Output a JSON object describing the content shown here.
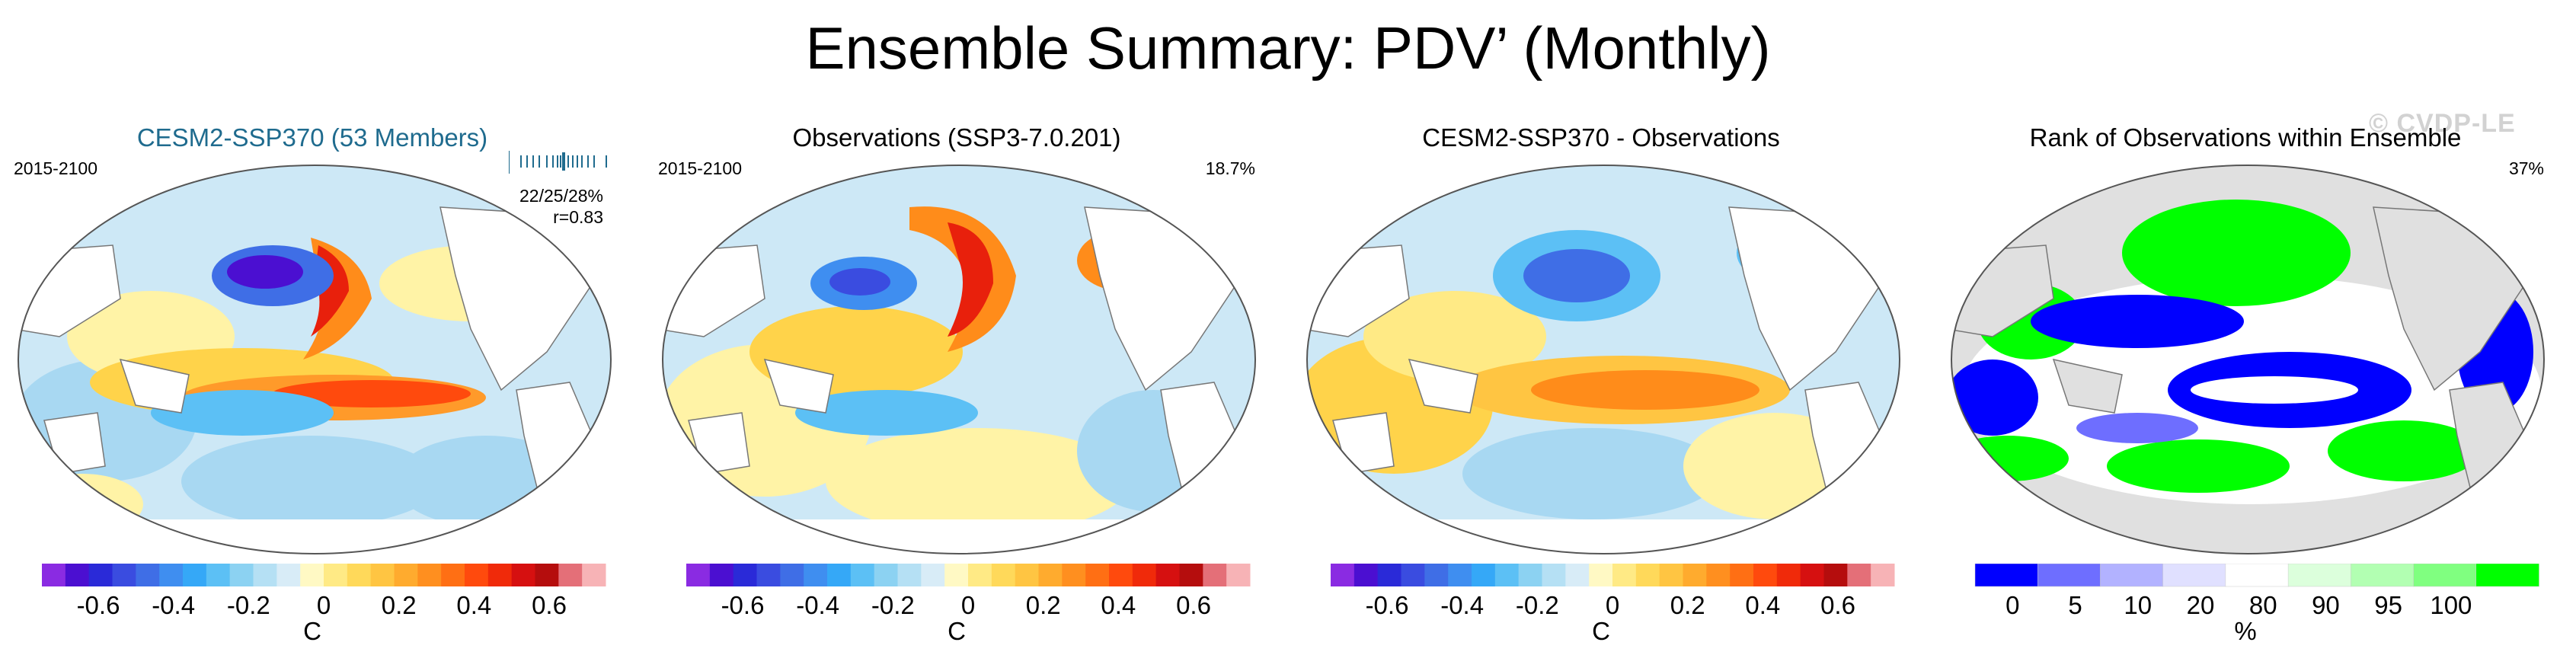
{
  "title": "Ensemble Summary: PDV’ (Monthly)",
  "watermark": "© CVDP-LE",
  "panels": [
    {
      "title": "CESM2-SSP370 (53 Members)",
      "title_color": "#1f6b8e",
      "left_label": "2015-2100",
      "right_stats": [
        "22/25/28%",
        "r=0.83"
      ],
      "colorbar_ticks": [
        "-0.6",
        "-0.4",
        "-0.2",
        "0",
        "0.2",
        "0.4",
        "0.6"
      ],
      "colorbar_unit": "C"
    },
    {
      "title": "Observations (SSP3-7.0.201)",
      "left_label": "2015-2100",
      "right_label": "18.7%",
      "colorbar_ticks": [
        "-0.6",
        "-0.4",
        "-0.2",
        "0",
        "0.2",
        "0.4",
        "0.6"
      ],
      "colorbar_unit": "C"
    },
    {
      "title": "CESM2-SSP370 - Observations",
      "colorbar_ticks": [
        "-0.6",
        "-0.4",
        "-0.2",
        "0",
        "0.2",
        "0.4",
        "0.6"
      ],
      "colorbar_unit": "C"
    },
    {
      "title": "Rank of Observations within Ensemble",
      "right_label": "37%",
      "colorbar_ticks": [
        "0",
        "5",
        "10",
        "20",
        "80",
        "90",
        "95",
        "100"
      ],
      "colorbar_unit": "%"
    }
  ],
  "colors": {
    "diverging": [
      "#8a2be2",
      "#4b0fd1",
      "#2a2ad8",
      "#3a4ce0",
      "#3f6ee6",
      "#3f8ef0",
      "#35a8f7",
      "#5cc0f5",
      "#8cd2f2",
      "#b5e0f4",
      "#d8ecf7",
      "#fff9c4",
      "#ffea85",
      "#ffd95a",
      "#ffc542",
      "#ffab2e",
      "#ff8f1f",
      "#ff6f14",
      "#ff4a0d",
      "#f02a0a",
      "#d61010",
      "#b50d0d",
      "#e46f78",
      "#f7b3b6"
    ],
    "rank": [
      "#0000ff",
      "#6e6eff",
      "#b2b2ff",
      "#e0e0ff",
      "#ffffff",
      "#dcffdc",
      "#b2ffb2",
      "#80ff80",
      "#00ff00"
    ],
    "land": "#e0e0e0",
    "ocean_neutral": "#ffffff"
  }
}
